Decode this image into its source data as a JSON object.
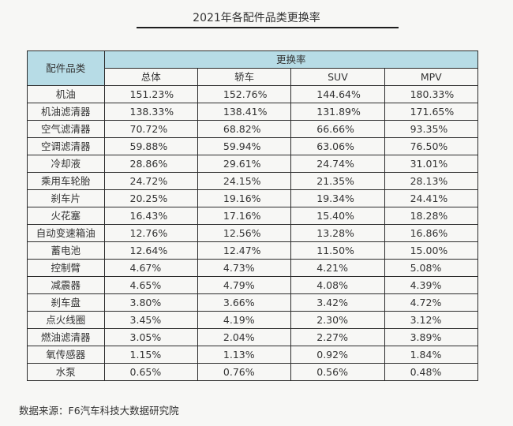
{
  "title": "2021年各配件品类更换率",
  "source": "数据来源：F6汽车科技大数据研究院",
  "chart_data": {
    "type": "table",
    "header": {
      "category_label": "配件品类",
      "group_label": "更换率",
      "columns": [
        "总体",
        "轿车",
        "SUV",
        "MPV"
      ]
    },
    "rows": [
      {
        "category": "机油",
        "values": [
          "151.23%",
          "152.76%",
          "144.64%",
          "180.33%"
        ]
      },
      {
        "category": "机油滤清器",
        "values": [
          "138.33%",
          "138.41%",
          "131.89%",
          "171.65%"
        ]
      },
      {
        "category": "空气滤清器",
        "values": [
          "70.72%",
          "68.82%",
          "66.66%",
          "93.35%"
        ]
      },
      {
        "category": "空调滤清器",
        "values": [
          "59.88%",
          "59.94%",
          "63.06%",
          "76.50%"
        ]
      },
      {
        "category": "冷却液",
        "values": [
          "28.86%",
          "29.61%",
          "24.74%",
          "31.01%"
        ]
      },
      {
        "category": "乘用车轮胎",
        "values": [
          "24.72%",
          "24.15%",
          "21.35%",
          "28.13%"
        ]
      },
      {
        "category": "刹车片",
        "values": [
          "20.25%",
          "19.16%",
          "19.34%",
          "24.41%"
        ]
      },
      {
        "category": "火花塞",
        "values": [
          "16.43%",
          "17.16%",
          "15.40%",
          "18.28%"
        ]
      },
      {
        "category": "自动变速箱油",
        "values": [
          "12.76%",
          "12.56%",
          "13.28%",
          "16.86%"
        ]
      },
      {
        "category": "蓄电池",
        "values": [
          "12.64%",
          "12.47%",
          "11.50%",
          "15.00%"
        ]
      },
      {
        "category": "控制臂",
        "values": [
          "4.67%",
          "4.73%",
          "4.21%",
          "5.08%"
        ]
      },
      {
        "category": "减震器",
        "values": [
          "4.65%",
          "4.79%",
          "4.08%",
          "4.39%"
        ]
      },
      {
        "category": "刹车盘",
        "values": [
          "3.80%",
          "3.66%",
          "3.42%",
          "4.72%"
        ]
      },
      {
        "category": "点火线圈",
        "values": [
          "3.45%",
          "4.19%",
          "2.30%",
          "3.12%"
        ]
      },
      {
        "category": "燃油滤清器",
        "values": [
          "3.05%",
          "2.04%",
          "2.27%",
          "3.89%"
        ]
      },
      {
        "category": "氧传感器",
        "values": [
          "1.15%",
          "1.13%",
          "0.92%",
          "1.84%"
        ]
      },
      {
        "category": "水泵",
        "values": [
          "0.65%",
          "0.76%",
          "0.56%",
          "0.48%"
        ]
      }
    ]
  },
  "colors": {
    "header_background": "#b7dce6",
    "border": "#2c2c2c",
    "page_background": "#f7f7f5"
  }
}
